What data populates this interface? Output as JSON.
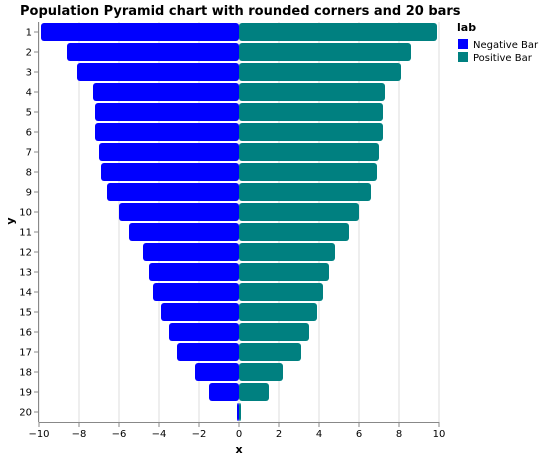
{
  "chart_data": {
    "type": "bar",
    "orientation": "horizontal",
    "title": "Population Pyramid chart with rounded corners and 20 bars",
    "xlabel": "x",
    "ylabel": "y",
    "xlim": [
      -10,
      10
    ],
    "x_ticks": [
      "−10",
      "−8",
      "−6",
      "−4",
      "−2",
      "0",
      "2",
      "4",
      "6",
      "8",
      "10"
    ],
    "grid": true,
    "legend_placement": "top-right",
    "legend_title": "lab",
    "categories": [
      "1",
      "2",
      "3",
      "4",
      "5",
      "6",
      "7",
      "8",
      "9",
      "10",
      "11",
      "12",
      "13",
      "14",
      "15",
      "16",
      "17",
      "18",
      "19",
      "20"
    ],
    "series": [
      {
        "name": "Negative Bar",
        "color": "#0000ff",
        "values": [
          -9.9,
          -8.6,
          -8.1,
          -7.3,
          -7.2,
          -7.2,
          -7.0,
          -6.9,
          -6.6,
          -6.0,
          -5.5,
          -4.8,
          -4.5,
          -4.3,
          -3.9,
          -3.5,
          -3.1,
          -2.2,
          -1.5,
          -0.1
        ]
      },
      {
        "name": "Positive Bar",
        "color": "#008080",
        "values": [
          9.9,
          8.6,
          8.1,
          7.3,
          7.2,
          7.2,
          7.0,
          6.9,
          6.6,
          6.0,
          5.5,
          4.8,
          4.5,
          4.2,
          3.9,
          3.5,
          3.1,
          2.2,
          1.5,
          0.1
        ]
      }
    ]
  }
}
